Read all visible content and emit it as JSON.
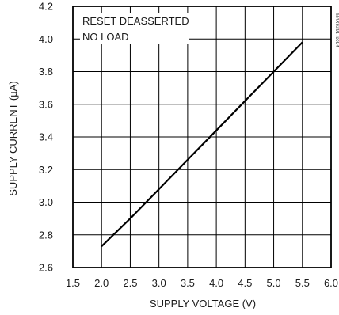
{
  "chart_data": {
    "type": "line",
    "xlabel": "SUPPLY VOLTAGE (V)",
    "ylabel": "SUPPLY CURRENT (µA)",
    "xlim": [
      1.5,
      6.0
    ],
    "ylim": [
      2.6,
      4.2
    ],
    "xticks": [
      1.5,
      2.0,
      2.5,
      3.0,
      3.5,
      4.0,
      4.5,
      5.0,
      5.5,
      6.0
    ],
    "xtick_labels": [
      "1.5",
      "2.0",
      "2.5",
      "3.0",
      "3.5",
      "4.0",
      "4.5",
      "5.0",
      "5.5",
      "6.0"
    ],
    "yticks": [
      2.6,
      2.8,
      3.0,
      3.2,
      3.4,
      3.6,
      3.8,
      4.0,
      4.2
    ],
    "ytick_labels": [
      "2.6",
      "2.8",
      "3.0",
      "3.2",
      "3.4",
      "3.6",
      "3.8",
      "4.0",
      "4.2"
    ],
    "grid": true,
    "annotations": [
      "RESET DEASSERTED",
      "NO LOAD"
    ],
    "side_label": "MAX6391 toc04",
    "series": [
      {
        "x": [
          2.0,
          2.5,
          3.0,
          3.5,
          4.0,
          4.5,
          5.0,
          5.5
        ],
        "values": [
          2.73,
          2.9,
          3.08,
          3.26,
          3.44,
          3.62,
          3.8,
          3.98
        ]
      }
    ],
    "colors": {
      "line": "#000000",
      "grid": "#000000",
      "frame": "#000000"
    }
  }
}
